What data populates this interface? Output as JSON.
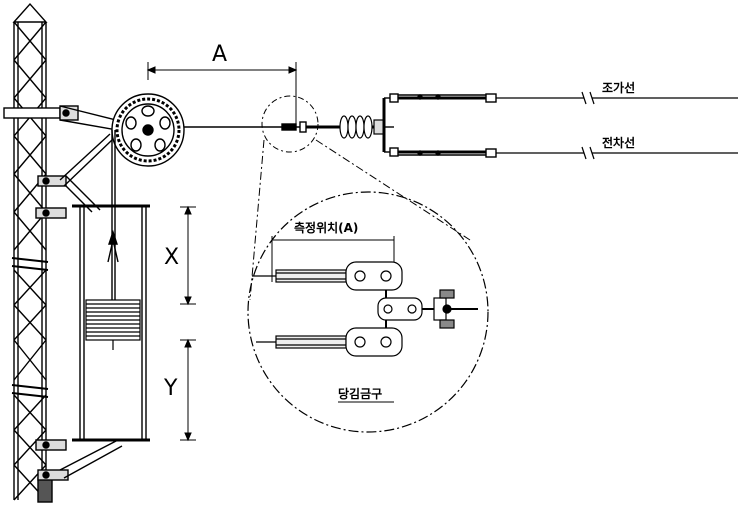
{
  "labels": {
    "dim_a": "A",
    "dim_x": "X",
    "dim_y": "Y",
    "messenger_wire": "조가선",
    "contact_wire": "전차선",
    "measure_position": "측정위치(A)",
    "tension_fitting": "당김금구"
  },
  "colors": {
    "line": "#000000",
    "steel": "#444444",
    "fill_gray": "#d9d9d9",
    "dark_fill": "#555555"
  },
  "icons": [
    "pulley-wheel-icon",
    "insulator-icon",
    "weight-stack-icon",
    "lattice-pole-icon"
  ]
}
